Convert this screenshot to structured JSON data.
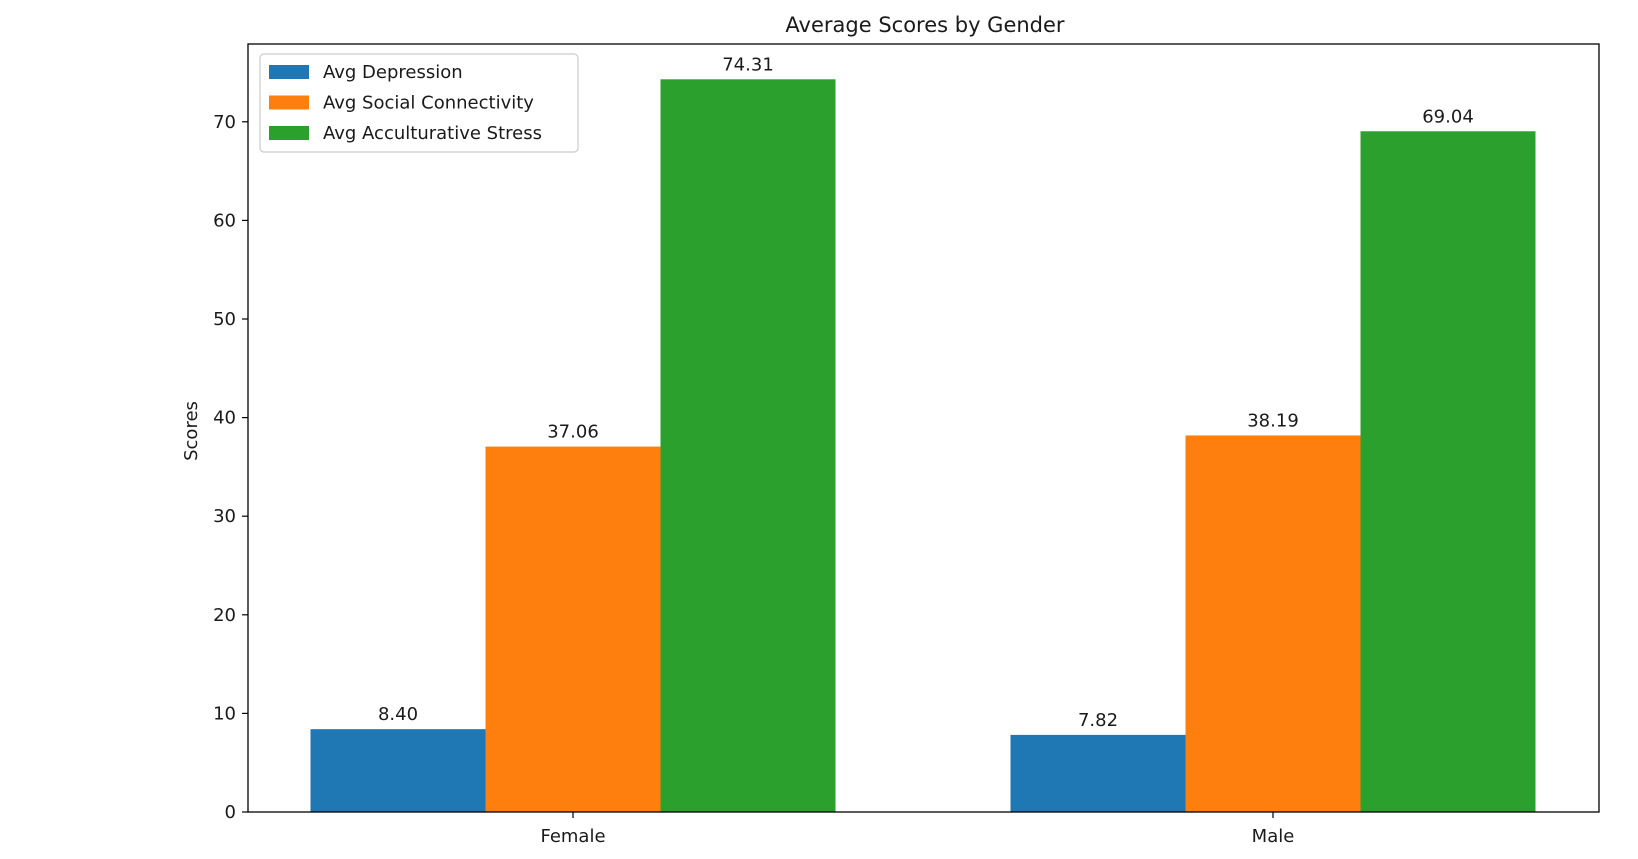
{
  "chart_data": {
    "type": "bar",
    "title": "Average Scores by Gender",
    "xlabel": "",
    "ylabel": "Scores",
    "categories": [
      "Female",
      "Male"
    ],
    "series": [
      {
        "name": "Avg Depression",
        "color": "#1f77b4",
        "values": [
          8.4,
          7.82
        ],
        "labels": [
          "8.40",
          "7.82"
        ]
      },
      {
        "name": "Avg Social Connectivity",
        "color": "#ff7f0e",
        "values": [
          37.06,
          38.19
        ],
        "labels": [
          "37.06",
          "38.19"
        ]
      },
      {
        "name": "Avg Acculturative Stress",
        "color": "#2ca02c",
        "values": [
          74.31,
          69.04
        ],
        "labels": [
          "74.31",
          "69.04"
        ]
      }
    ],
    "yticks": [
      0,
      10,
      20,
      30,
      40,
      50,
      60,
      70
    ],
    "ylim": [
      0,
      78
    ],
    "grid": false,
    "legend": "top-left"
  }
}
